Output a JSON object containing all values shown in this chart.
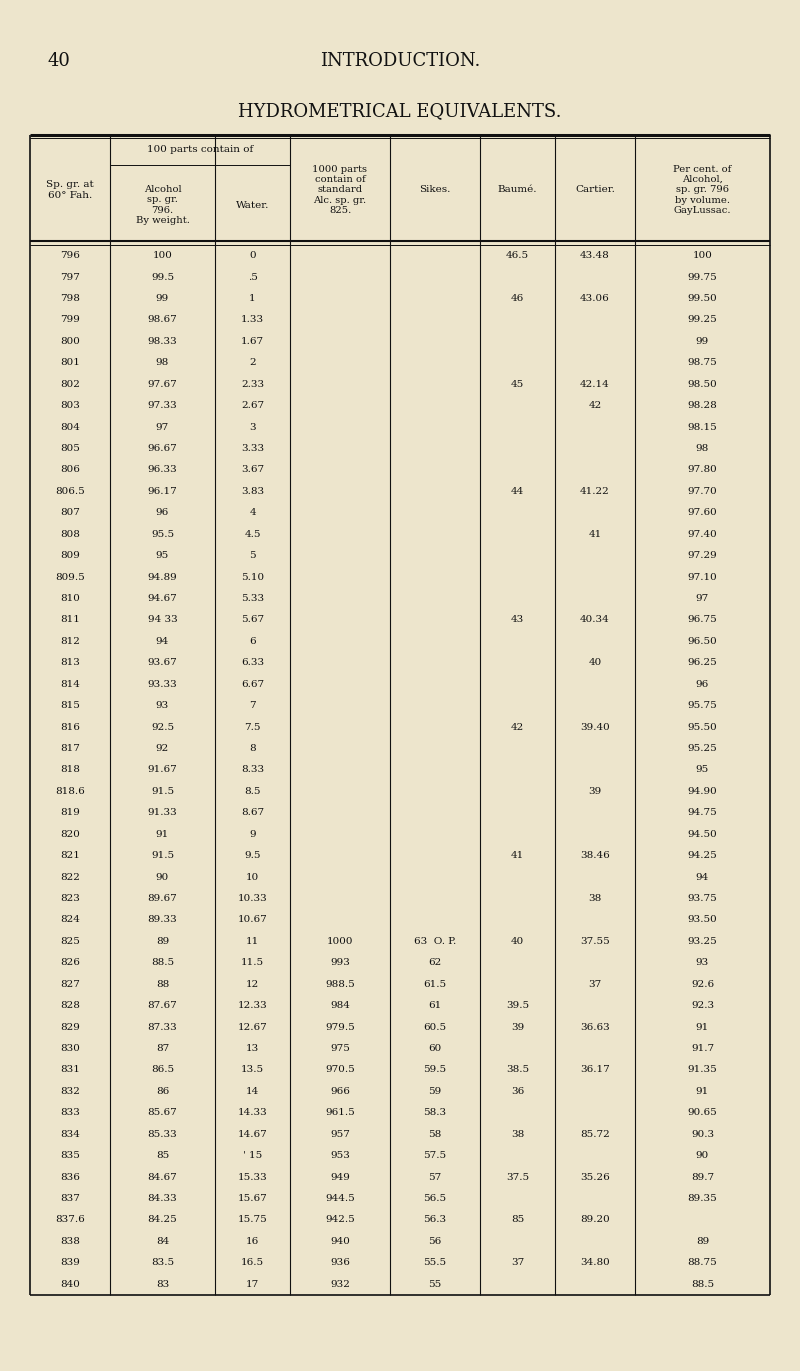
{
  "page_number": "40",
  "page_title": "INTRODUCTION.",
  "table_title": "HYDROMETRICAL EQUIVALENTS.",
  "bg_color": "#ede5cc",
  "rows": [
    [
      "796",
      "100",
      "0",
      "",
      "",
      "46.5",
      "43.48",
      "100"
    ],
    [
      "797",
      "99.5",
      ".5",
      "",
      "",
      "",
      "",
      "99.75"
    ],
    [
      "798",
      "99",
      "1",
      "",
      "",
      "46",
      "43.06",
      "99.50"
    ],
    [
      "799",
      "98.67",
      "1.33",
      "",
      "",
      "",
      "",
      "99.25"
    ],
    [
      "800",
      "98.33",
      "1.67",
      "",
      "",
      "",
      "",
      "99"
    ],
    [
      "801",
      "98",
      "2",
      "",
      "",
      "",
      "",
      "98.75"
    ],
    [
      "802",
      "97.67",
      "2.33",
      "",
      "",
      "45",
      "42.14",
      "98.50"
    ],
    [
      "803",
      "97.33",
      "2.67",
      "",
      "",
      "",
      "42",
      "98.28"
    ],
    [
      "804",
      "97",
      "3",
      "",
      "",
      "",
      "",
      "98.15"
    ],
    [
      "805",
      "96.67",
      "3.33",
      "",
      "",
      "",
      "",
      "98"
    ],
    [
      "806",
      "96.33",
      "3.67",
      "",
      "",
      "",
      "",
      "97.80"
    ],
    [
      "806.5",
      "96.17",
      "3.83",
      "",
      "",
      "44",
      "41.22",
      "97.70"
    ],
    [
      "807",
      "96",
      "4",
      "",
      "",
      "",
      "",
      "97.60"
    ],
    [
      "808",
      "95.5",
      "4.5",
      "",
      "",
      "",
      "41",
      "97.40"
    ],
    [
      "809",
      "95",
      "5",
      "",
      "",
      "",
      "",
      "97.29"
    ],
    [
      "809.5",
      "94.89",
      "5.10",
      "",
      "",
      "",
      "",
      "97.10"
    ],
    [
      "810",
      "94.67",
      "5.33",
      "",
      "",
      "",
      "",
      "97"
    ],
    [
      "811",
      "94 33",
      "5.67",
      "",
      "",
      "43",
      "40.34",
      "96.75"
    ],
    [
      "812",
      "94",
      "6",
      "",
      "",
      "",
      "",
      "96.50"
    ],
    [
      "813",
      "93.67",
      "6.33",
      "",
      "",
      "",
      "40",
      "96.25"
    ],
    [
      "814",
      "93.33",
      "6.67",
      "",
      "",
      "",
      "",
      "96"
    ],
    [
      "815",
      "93",
      "7",
      "",
      "",
      "",
      "",
      "95.75"
    ],
    [
      "816",
      "92.5",
      "7.5",
      "",
      "",
      "42",
      "39.40",
      "95.50"
    ],
    [
      "817",
      "92",
      "8",
      "",
      "",
      "",
      "",
      "95.25"
    ],
    [
      "818",
      "91.67",
      "8.33",
      "",
      "",
      "",
      "",
      "95"
    ],
    [
      "818.6",
      "91.5",
      "8.5",
      "",
      "",
      "",
      "39",
      "94.90"
    ],
    [
      "819",
      "91.33",
      "8.67",
      "",
      "",
      "",
      "",
      "94.75"
    ],
    [
      "820",
      "91",
      "9",
      "",
      "",
      "",
      "",
      "94.50"
    ],
    [
      "821",
      "91.5",
      "9.5",
      "",
      "",
      "41",
      "38.46",
      "94.25"
    ],
    [
      "822",
      "90",
      "10",
      "",
      "",
      "",
      "",
      "94"
    ],
    [
      "823",
      "89.67",
      "10.33",
      "",
      "",
      "",
      "38",
      "93.75"
    ],
    [
      "824",
      "89.33",
      "10.67",
      "",
      "",
      "",
      "",
      "93.50"
    ],
    [
      "825",
      "89",
      "11",
      "1000",
      "63  O. P.",
      "40",
      "37.55",
      "93.25"
    ],
    [
      "826",
      "88.5",
      "11.5",
      "993",
      "62",
      "",
      "",
      "93"
    ],
    [
      "827",
      "88",
      "12",
      "988.5",
      "61.5",
      "",
      "37",
      "92.6"
    ],
    [
      "828",
      "87.67",
      "12.33",
      "984",
      "61",
      "39.5",
      "",
      "92.3"
    ],
    [
      "829",
      "87.33",
      "12.67",
      "979.5",
      "60.5",
      "39",
      "36.63",
      "91"
    ],
    [
      "830",
      "87",
      "13",
      "975",
      "60",
      "",
      "",
      "91.7"
    ],
    [
      "831",
      "86.5",
      "13.5",
      "970.5",
      "59.5",
      "38.5",
      "36.17",
      "91.35"
    ],
    [
      "832",
      "86",
      "14",
      "966",
      "59",
      "36",
      "",
      "91"
    ],
    [
      "833",
      "85.67",
      "14.33",
      "961.5",
      "58.3",
      "",
      "",
      "90.65"
    ],
    [
      "834",
      "85.33",
      "14.67",
      "957",
      "58",
      "38",
      "85.72",
      "90.3"
    ],
    [
      "835",
      "85",
      "' 15",
      "953",
      "57.5",
      "",
      "",
      "90"
    ],
    [
      "836",
      "84.67",
      "15.33",
      "949",
      "57",
      "37.5",
      "35.26",
      "89.7"
    ],
    [
      "837",
      "84.33",
      "15.67",
      "944.5",
      "56.5",
      "",
      "",
      "89.35"
    ],
    [
      "837.6",
      "84.25",
      "15.75",
      "942.5",
      "56.3",
      "85",
      "89.20",
      ""
    ],
    [
      "838",
      "84",
      "16",
      "940",
      "56",
      "",
      "",
      "89"
    ],
    [
      "839",
      "83.5",
      "16.5",
      "936",
      "55.5",
      "37",
      "34.80",
      "88.75"
    ],
    [
      "840",
      "83",
      "17",
      "932",
      "55",
      "",
      "",
      "88.5"
    ]
  ]
}
